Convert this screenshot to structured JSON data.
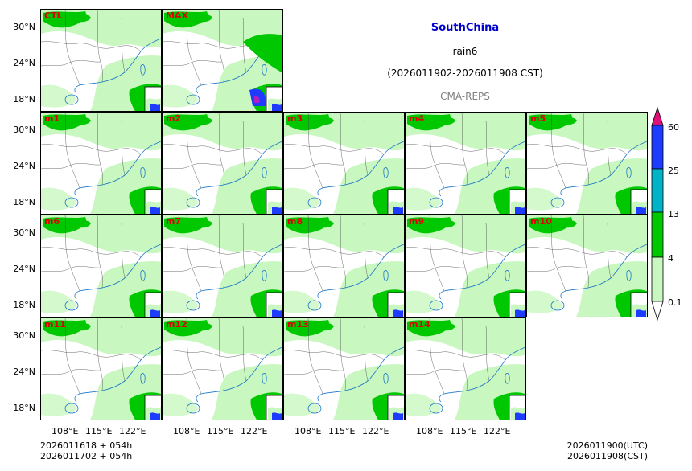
{
  "header": {
    "region": "SouthChina",
    "variable": "rain6",
    "period": "(2026011902-2026011908 CST)",
    "model": "CMA-REPS"
  },
  "panels": [
    "CTL",
    "MAX",
    "m1",
    "m2",
    "m3",
    "m4",
    "m5",
    "m6",
    "m7",
    "m8",
    "m9",
    "m10",
    "m11",
    "m12",
    "m13",
    "m14"
  ],
  "axes": {
    "lat_ticks": [
      "30°N",
      "24°N",
      "18°N"
    ],
    "lon_ticks": [
      "108°E",
      "115°E",
      "122°E"
    ]
  },
  "colorbar": {
    "levels": [
      "0.1",
      "4",
      "13",
      "25",
      "60"
    ],
    "colors": [
      "#c8f7c0",
      "#00c800",
      "#00b4c8",
      "#1e3cff",
      "#e0107a"
    ]
  },
  "footer": {
    "init_utc": "2026011618  +  054h",
    "init_cst": "2026011702  +  054h",
    "valid_utc": "2026011900(UTC)",
    "valid_cst": "2026011908(CST)"
  }
}
